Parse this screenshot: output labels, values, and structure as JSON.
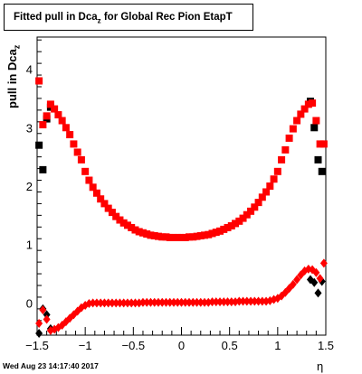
{
  "title": {
    "main": "Fitted pull in Dca",
    "sub": "z",
    "rest": " for Global Rec Pion EtapT"
  },
  "axes": {
    "ylabel_main": "pull in Dca",
    "ylabel_sub": "z",
    "xlabel": "η"
  },
  "footer": "Wed Aug 23 14:17:40 2017",
  "colors": {
    "series_black": "#000000",
    "series_red": "#ff0000"
  },
  "chart_data": {
    "type": "scatter",
    "xlim": [
      -1.5,
      1.5
    ],
    "ylim": [
      -0.55,
      4.55
    ],
    "x_ticks": [
      {
        "v": -1.5,
        "label": "−1.5"
      },
      {
        "v": -1,
        "label": "−1"
      },
      {
        "v": -0.5,
        "label": "−0.5"
      },
      {
        "v": 0,
        "label": "0"
      },
      {
        "v": 0.5,
        "label": "0.5"
      },
      {
        "v": 1,
        "label": "1"
      },
      {
        "v": 1.5,
        "label": "1.5"
      }
    ],
    "y_ticks": [
      {
        "v": 0,
        "label": "0"
      },
      {
        "v": 1,
        "label": "1"
      },
      {
        "v": 2,
        "label": "2"
      },
      {
        "v": 3,
        "label": "3"
      },
      {
        "v": 4,
        "label": "4"
      }
    ],
    "series": [
      {
        "color": "#000000",
        "marker": "square",
        "points": [
          [
            -1.48,
            2.7
          ],
          [
            -1.44,
            2.28
          ],
          [
            -1.4,
            3.15
          ],
          [
            -1.36,
            3.35
          ],
          [
            1.34,
            3.45
          ],
          [
            1.38,
            3.0
          ],
          [
            1.42,
            2.45
          ],
          [
            1.46,
            2.25
          ]
        ]
      },
      {
        "color": "#000000",
        "marker": "diamond",
        "points": [
          [
            -1.48,
            -0.52
          ],
          [
            -1.44,
            -0.1
          ],
          [
            -1.4,
            -0.2
          ],
          [
            -1.36,
            -0.44
          ],
          [
            1.34,
            0.4
          ],
          [
            1.38,
            0.35
          ],
          [
            1.42,
            0.17
          ],
          [
            1.46,
            0.37
          ]
        ]
      },
      {
        "color": "#ff0000",
        "marker": "square",
        "points": [
          [
            -1.48,
            3.8
          ],
          [
            -1.44,
            3.05
          ],
          [
            -1.4,
            3.2
          ],
          [
            -1.36,
            3.4
          ],
          [
            -1.32,
            3.32
          ],
          [
            -1.28,
            3.22
          ],
          [
            -1.24,
            3.12
          ],
          [
            -1.2,
            3.0
          ],
          [
            -1.16,
            2.88
          ],
          [
            -1.12,
            2.72
          ],
          [
            -1.08,
            2.58
          ],
          [
            -1.04,
            2.45
          ],
          [
            -1.0,
            2.25
          ],
          [
            -0.96,
            2.1
          ],
          [
            -0.92,
            1.98
          ],
          [
            -0.88,
            1.88
          ],
          [
            -0.84,
            1.78
          ],
          [
            -0.8,
            1.7
          ],
          [
            -0.76,
            1.62
          ],
          [
            -0.72,
            1.55
          ],
          [
            -0.68,
            1.48
          ],
          [
            -0.64,
            1.42
          ],
          [
            -0.6,
            1.37
          ],
          [
            -0.56,
            1.33
          ],
          [
            -0.52,
            1.29
          ],
          [
            -0.48,
            1.25
          ],
          [
            -0.44,
            1.22
          ],
          [
            -0.4,
            1.2
          ],
          [
            -0.36,
            1.18
          ],
          [
            -0.32,
            1.16
          ],
          [
            -0.28,
            1.15
          ],
          [
            -0.24,
            1.14
          ],
          [
            -0.2,
            1.13
          ],
          [
            -0.16,
            1.13
          ],
          [
            -0.12,
            1.12
          ],
          [
            -0.08,
            1.12
          ],
          [
            -0.04,
            1.12
          ],
          [
            0.0,
            1.12
          ],
          [
            0.04,
            1.12
          ],
          [
            0.08,
            1.13
          ],
          [
            0.12,
            1.13
          ],
          [
            0.16,
            1.14
          ],
          [
            0.2,
            1.15
          ],
          [
            0.24,
            1.16
          ],
          [
            0.28,
            1.17
          ],
          [
            0.32,
            1.19
          ],
          [
            0.36,
            1.21
          ],
          [
            0.4,
            1.23
          ],
          [
            0.44,
            1.26
          ],
          [
            0.48,
            1.29
          ],
          [
            0.52,
            1.32
          ],
          [
            0.56,
            1.36
          ],
          [
            0.6,
            1.4
          ],
          [
            0.64,
            1.45
          ],
          [
            0.68,
            1.51
          ],
          [
            0.72,
            1.57
          ],
          [
            0.76,
            1.64
          ],
          [
            0.8,
            1.72
          ],
          [
            0.84,
            1.81
          ],
          [
            0.88,
            1.9
          ],
          [
            0.92,
            2.0
          ],
          [
            0.96,
            2.12
          ],
          [
            1.0,
            2.25
          ],
          [
            1.04,
            2.45
          ],
          [
            1.08,
            2.62
          ],
          [
            1.12,
            2.82
          ],
          [
            1.16,
            2.98
          ],
          [
            1.2,
            3.12
          ],
          [
            1.24,
            3.23
          ],
          [
            1.28,
            3.32
          ],
          [
            1.32,
            3.4
          ],
          [
            1.36,
            3.42
          ],
          [
            1.4,
            3.12
          ],
          [
            1.44,
            2.72
          ],
          [
            1.48,
            2.72
          ]
        ]
      },
      {
        "color": "#ff0000",
        "marker": "diamond",
        "points": [
          [
            -1.48,
            -0.35
          ],
          [
            -1.44,
            -0.12
          ],
          [
            -1.4,
            -0.28
          ],
          [
            -1.36,
            -0.47
          ],
          [
            -1.32,
            -0.45
          ],
          [
            -1.28,
            -0.42
          ],
          [
            -1.24,
            -0.38
          ],
          [
            -1.2,
            -0.32
          ],
          [
            -1.16,
            -0.26
          ],
          [
            -1.12,
            -0.2
          ],
          [
            -1.08,
            -0.14
          ],
          [
            -1.04,
            -0.08
          ],
          [
            -1.0,
            -0.04
          ],
          [
            -0.96,
            -0.01
          ],
          [
            -0.92,
            0.0
          ],
          [
            -0.88,
            0.0
          ],
          [
            -0.84,
            0.0
          ],
          [
            -0.8,
            0.0
          ],
          [
            -0.76,
            0.0
          ],
          [
            -0.72,
            0.0
          ],
          [
            -0.68,
            0.0
          ],
          [
            -0.64,
            0.0
          ],
          [
            -0.6,
            0.0
          ],
          [
            -0.56,
            0.0
          ],
          [
            -0.52,
            0.0
          ],
          [
            -0.48,
            0.0
          ],
          [
            -0.44,
            0.0
          ],
          [
            -0.4,
            0.01
          ],
          [
            -0.36,
            0.01
          ],
          [
            -0.32,
            0.01
          ],
          [
            -0.28,
            0.01
          ],
          [
            -0.24,
            0.01
          ],
          [
            -0.2,
            0.01
          ],
          [
            -0.16,
            0.01
          ],
          [
            -0.12,
            0.01
          ],
          [
            -0.08,
            0.01
          ],
          [
            -0.04,
            0.01
          ],
          [
            0.0,
            0.01
          ],
          [
            0.04,
            0.01
          ],
          [
            0.08,
            0.01
          ],
          [
            0.12,
            0.01
          ],
          [
            0.16,
            0.01
          ],
          [
            0.2,
            0.01
          ],
          [
            0.24,
            0.01
          ],
          [
            0.28,
            0.01
          ],
          [
            0.32,
            0.02
          ],
          [
            0.36,
            0.02
          ],
          [
            0.4,
            0.02
          ],
          [
            0.44,
            0.02
          ],
          [
            0.48,
            0.02
          ],
          [
            0.52,
            0.02
          ],
          [
            0.56,
            0.02
          ],
          [
            0.6,
            0.03
          ],
          [
            0.64,
            0.03
          ],
          [
            0.68,
            0.03
          ],
          [
            0.72,
            0.03
          ],
          [
            0.76,
            0.03
          ],
          [
            0.8,
            0.03
          ],
          [
            0.84,
            0.03
          ],
          [
            0.88,
            0.03
          ],
          [
            0.92,
            0.04
          ],
          [
            0.96,
            0.06
          ],
          [
            1.0,
            0.08
          ],
          [
            1.04,
            0.12
          ],
          [
            1.08,
            0.18
          ],
          [
            1.12,
            0.25
          ],
          [
            1.16,
            0.32
          ],
          [
            1.2,
            0.4
          ],
          [
            1.24,
            0.48
          ],
          [
            1.28,
            0.55
          ],
          [
            1.32,
            0.58
          ],
          [
            1.36,
            0.57
          ],
          [
            1.4,
            0.52
          ],
          [
            1.44,
            0.42
          ],
          [
            1.48,
            0.68
          ]
        ]
      }
    ]
  }
}
